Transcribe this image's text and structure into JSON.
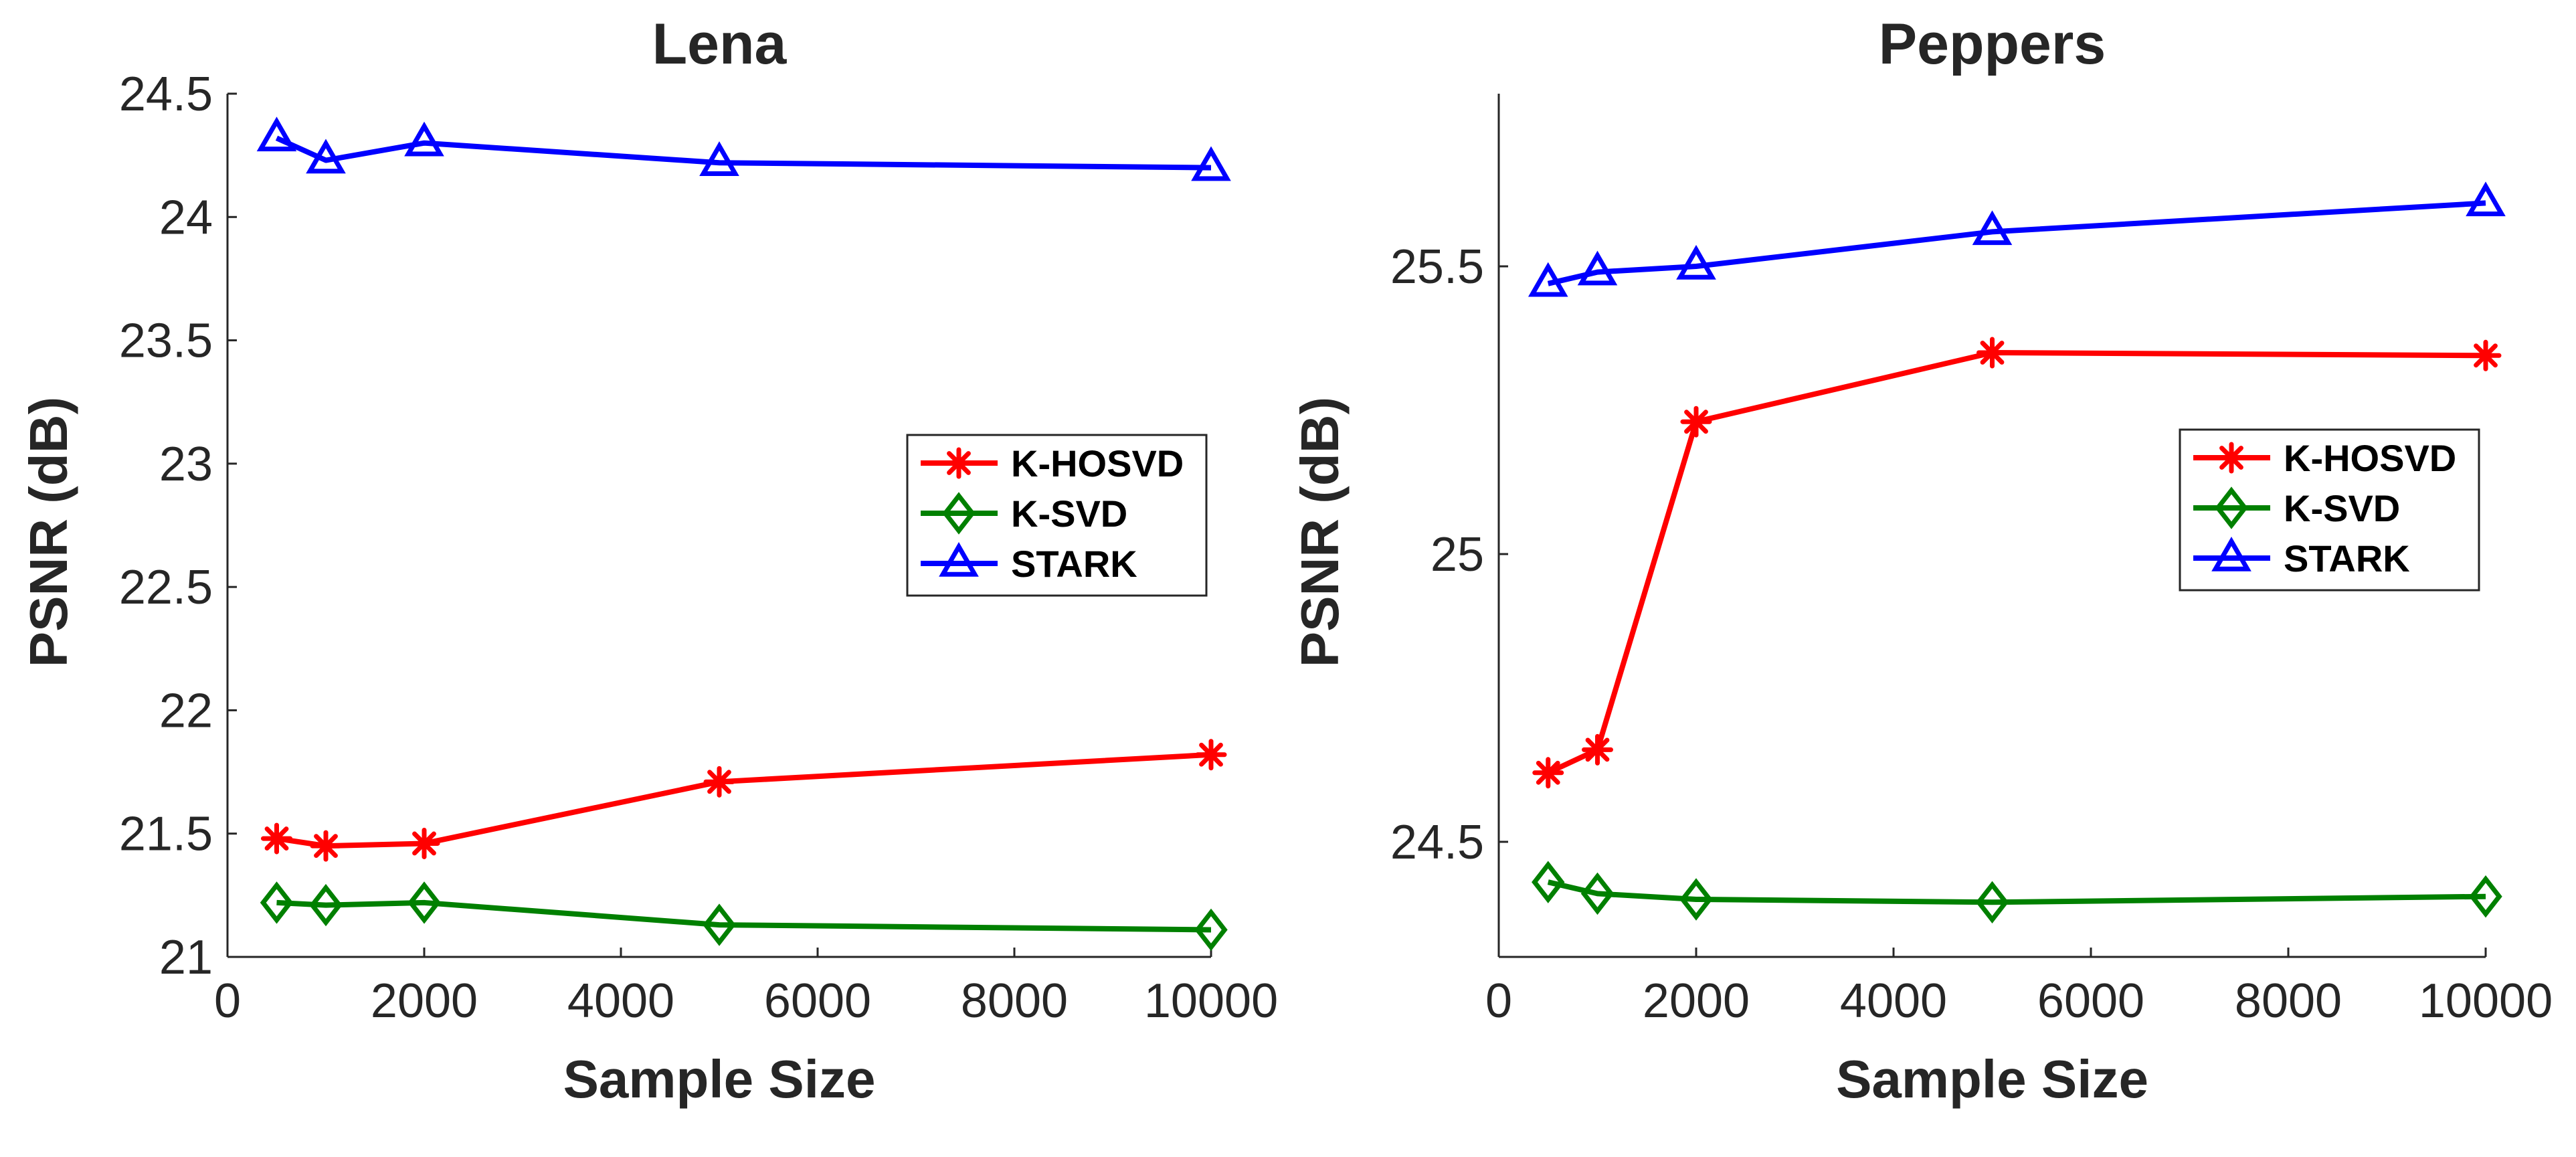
{
  "chart_data": [
    {
      "type": "line",
      "title": "Lena",
      "xlabel": "Sample Size",
      "ylabel": "PSNR (dB)",
      "xlim": [
        0,
        10000
      ],
      "ylim": [
        21,
        24.5
      ],
      "xticks": [
        0,
        2000,
        4000,
        6000,
        8000,
        10000
      ],
      "yticks": [
        21,
        21.5,
        22,
        22.5,
        23,
        23.5,
        24,
        24.5
      ],
      "xtick_labels": [
        "0",
        "2000",
        "4000",
        "6000",
        "8000",
        "10000"
      ],
      "ytick_labels": [
        "21",
        "21.5",
        "22",
        "22.5",
        "23",
        "23.5",
        "24",
        "24.5"
      ],
      "grid": false,
      "legend_position": "center-right",
      "x": [
        500,
        1000,
        2000,
        5000,
        10000
      ],
      "series": [
        {
          "name": "K-HOSVD",
          "color": "#ff0000",
          "marker": "asterisk",
          "values": [
            21.48,
            21.45,
            21.46,
            21.71,
            21.82
          ]
        },
        {
          "name": "K-SVD",
          "color": "#008000",
          "marker": "diamond",
          "values": [
            21.22,
            21.21,
            21.22,
            21.13,
            21.11
          ]
        },
        {
          "name": "STARK",
          "color": "#0000ff",
          "marker": "triangle",
          "values": [
            24.32,
            24.23,
            24.3,
            24.22,
            24.2
          ]
        }
      ]
    },
    {
      "type": "line",
      "title": "Peppers",
      "xlabel": "Sample Size",
      "ylabel": "PSNR (dB)",
      "xlim": [
        0,
        10000
      ],
      "ylim": [
        24.3,
        25.8
      ],
      "xticks": [
        0,
        2000,
        4000,
        6000,
        8000,
        10000
      ],
      "yticks": [
        24.5,
        25,
        25.5
      ],
      "xtick_labels": [
        "0",
        "2000",
        "4000",
        "6000",
        "8000",
        "10000"
      ],
      "ytick_labels": [
        "24.5",
        "25",
        "25.5"
      ],
      "grid": false,
      "legend_position": "center-right",
      "x": [
        500,
        1000,
        2000,
        5000,
        10000
      ],
      "series": [
        {
          "name": "K-HOSVD",
          "color": "#ff0000",
          "marker": "asterisk",
          "values": [
            24.62,
            24.66,
            25.23,
            25.35,
            25.345
          ]
        },
        {
          "name": "K-SVD",
          "color": "#008000",
          "marker": "diamond",
          "values": [
            24.43,
            24.41,
            24.4,
            24.395,
            24.405
          ]
        },
        {
          "name": "STARK",
          "color": "#0000ff",
          "marker": "triangle",
          "values": [
            25.47,
            25.49,
            25.5,
            25.56,
            25.61
          ]
        }
      ]
    }
  ]
}
